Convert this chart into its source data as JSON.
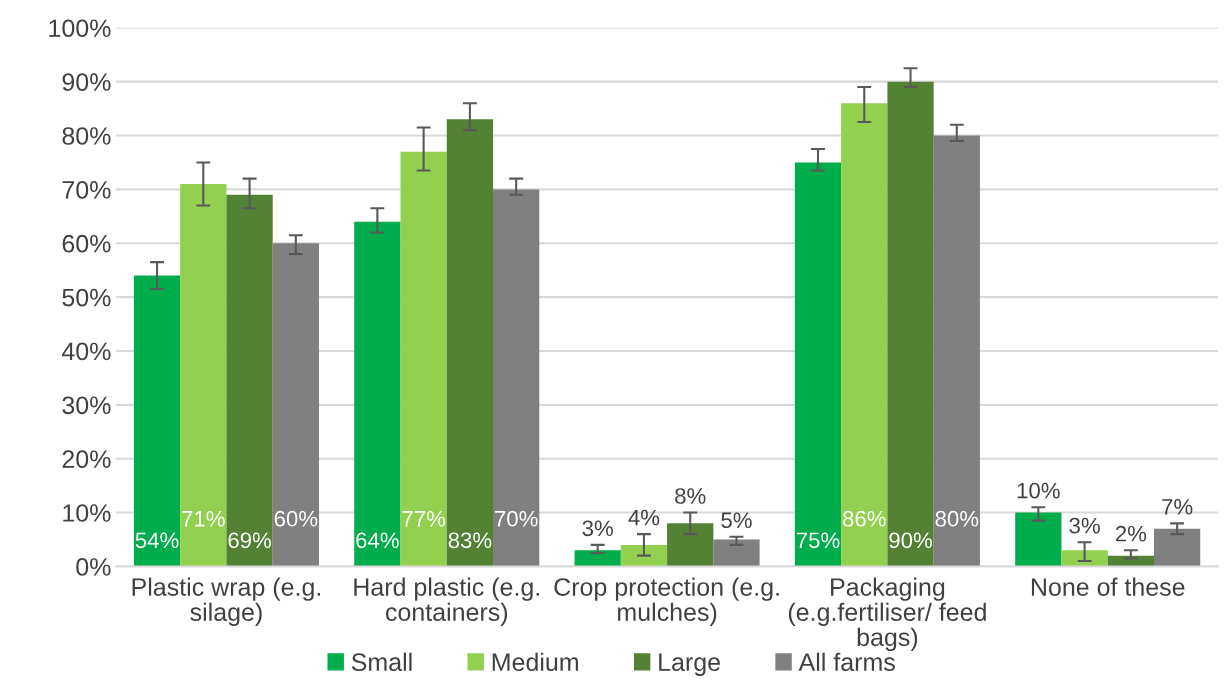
{
  "chart_data": {
    "type": "bar",
    "categories": [
      "Plastic wrap (e.g. silage)",
      "Hard plastic (e.g. containers)",
      "Crop protection (e.g. mulches)",
      "Packaging (e.g.fertiliser/ feed bags)",
      "None of these"
    ],
    "series": [
      {
        "name": "Small",
        "color": "#00ac4b",
        "values": [
          54,
          64,
          3,
          75,
          10
        ],
        "value_labels": [
          "54%",
          "64%",
          "3%",
          "75%",
          "10%"
        ],
        "errors": [
          [
            51.5,
            56.5
          ],
          [
            62,
            66.5
          ],
          [
            2.5,
            4
          ],
          [
            73.5,
            77.5
          ],
          [
            8.5,
            11
          ]
        ]
      },
      {
        "name": "Medium",
        "color": "#92d050",
        "values": [
          71,
          77,
          4,
          86,
          3
        ],
        "value_labels": [
          "71%",
          "77%",
          "4%",
          "86%",
          "3%"
        ],
        "errors": [
          [
            67,
            75
          ],
          [
            73.5,
            81.5
          ],
          [
            2,
            6
          ],
          [
            82.5,
            89
          ],
          [
            1,
            4.5
          ]
        ]
      },
      {
        "name": "Large",
        "color": "#548235",
        "values": [
          69,
          83,
          8,
          90,
          2
        ],
        "value_labels": [
          "69%",
          "83%",
          "8%",
          "90%",
          "2%"
        ],
        "errors": [
          [
            66.5,
            72
          ],
          [
            81,
            86
          ],
          [
            6,
            10
          ],
          [
            89,
            92.5
          ],
          [
            1.5,
            3
          ]
        ]
      },
      {
        "name": "All farms",
        "color": "#808080",
        "values": [
          60,
          70,
          5,
          80,
          7
        ],
        "value_labels": [
          "60%",
          "70%",
          "5%",
          "80%",
          "7%"
        ],
        "errors": [
          [
            58,
            61.5
          ],
          [
            69,
            72
          ],
          [
            4,
            5.5
          ],
          [
            79,
            82
          ],
          [
            6,
            8
          ]
        ]
      }
    ],
    "ylim": [
      0,
      100
    ],
    "yticks": [
      {
        "value": 0,
        "label": "0%"
      },
      {
        "value": 10,
        "label": "10%"
      },
      {
        "value": 20,
        "label": "20%"
      },
      {
        "value": 30,
        "label": "30%"
      },
      {
        "value": 40,
        "label": "40%"
      },
      {
        "value": 50,
        "label": "50%"
      },
      {
        "value": 60,
        "label": "60%"
      },
      {
        "value": 70,
        "label": "70%"
      },
      {
        "value": 80,
        "label": "80%"
      },
      {
        "value": 90,
        "label": "90%"
      },
      {
        "value": 100,
        "label": "100%"
      }
    ],
    "grid": "y",
    "legend": "bottom"
  }
}
